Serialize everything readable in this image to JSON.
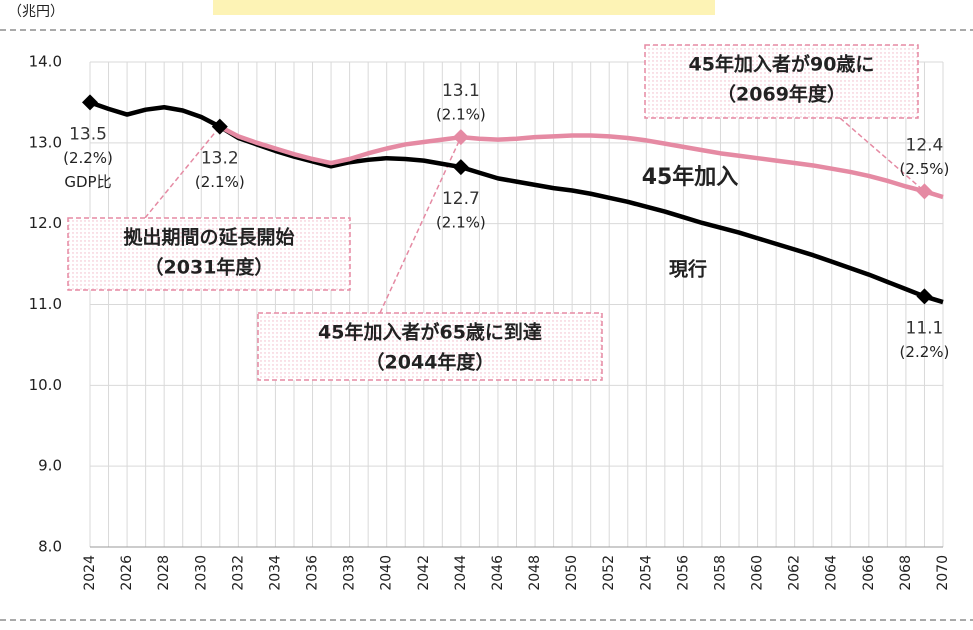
{
  "chart_data": {
    "type": "line",
    "unit_label": "（兆円）",
    "x": [
      2024,
      2025,
      2026,
      2027,
      2028,
      2029,
      2030,
      2031,
      2032,
      2033,
      2034,
      2035,
      2036,
      2037,
      2038,
      2039,
      2040,
      2041,
      2042,
      2043,
      2044,
      2045,
      2046,
      2047,
      2048,
      2049,
      2050,
      2051,
      2052,
      2053,
      2054,
      2055,
      2056,
      2057,
      2058,
      2059,
      2060,
      2061,
      2062,
      2063,
      2064,
      2065,
      2066,
      2067,
      2068,
      2069,
      2070
    ],
    "xlim": [
      2024,
      2070
    ],
    "xticks": [
      2024,
      2026,
      2028,
      2030,
      2032,
      2034,
      2036,
      2038,
      2040,
      2042,
      2044,
      2046,
      2048,
      2050,
      2052,
      2054,
      2056,
      2058,
      2060,
      2062,
      2064,
      2066,
      2068,
      2070
    ],
    "ylim": [
      8,
      14
    ],
    "yticks": [
      {
        "value": 8,
        "label": "8.0"
      },
      {
        "value": 9,
        "label": "9.0"
      },
      {
        "value": 10,
        "label": "10.0"
      },
      {
        "value": 11,
        "label": "11.0"
      },
      {
        "value": 12,
        "label": "12.0"
      },
      {
        "value": 13,
        "label": "13.0"
      },
      {
        "value": 14,
        "label": "14.0"
      }
    ],
    "grid": true,
    "series": [
      {
        "name": "現行",
        "color": "#000000",
        "values": [
          13.5,
          13.42,
          13.35,
          13.41,
          13.44,
          13.4,
          13.32,
          13.2,
          13.06,
          12.98,
          12.9,
          12.83,
          12.77,
          12.71,
          12.76,
          12.79,
          12.81,
          12.8,
          12.78,
          12.74,
          12.7,
          12.63,
          12.56,
          12.52,
          12.48,
          12.44,
          12.41,
          12.37,
          12.32,
          12.27,
          12.21,
          12.15,
          12.08,
          12.01,
          11.95,
          11.89,
          11.82,
          11.75,
          11.68,
          11.61,
          11.53,
          11.45,
          11.37,
          11.28,
          11.19,
          11.1,
          11.03
        ],
        "value_labels": [
          "13.5",
          null,
          null,
          null,
          null,
          null,
          null,
          "13.2",
          null,
          null,
          null,
          null,
          null,
          null,
          null,
          null,
          null,
          null,
          null,
          null,
          "12.7",
          null,
          null,
          null,
          null,
          null,
          null,
          null,
          null,
          null,
          null,
          null,
          null,
          null,
          null,
          null,
          null,
          null,
          null,
          null,
          null,
          null,
          null,
          null,
          null,
          "11.1",
          null
        ],
        "gdp_labels": [
          "(2.2%)",
          null,
          null,
          null,
          null,
          null,
          null,
          "(2.1%)",
          null,
          null,
          null,
          null,
          null,
          null,
          null,
          null,
          null,
          null,
          null,
          null,
          "(2.1%)",
          null,
          null,
          null,
          null,
          null,
          null,
          null,
          null,
          null,
          null,
          null,
          null,
          null,
          null,
          null,
          null,
          null,
          null,
          null,
          null,
          null,
          null,
          null,
          null,
          "(2.2%)",
          null
        ]
      },
      {
        "name": "45年加入",
        "color": "#e58aa3",
        "values": [
          null,
          null,
          null,
          null,
          null,
          null,
          null,
          13.2,
          13.08,
          13.0,
          12.93,
          12.86,
          12.8,
          12.75,
          12.8,
          12.87,
          12.93,
          12.98,
          13.01,
          13.04,
          13.07,
          13.05,
          13.04,
          13.05,
          13.07,
          13.08,
          13.09,
          13.09,
          13.08,
          13.06,
          13.03,
          12.99,
          12.95,
          12.91,
          12.87,
          12.84,
          12.81,
          12.78,
          12.75,
          12.72,
          12.68,
          12.64,
          12.59,
          12.53,
          12.46,
          12.4,
          12.33
        ],
        "value_labels": [
          null,
          null,
          null,
          null,
          null,
          null,
          null,
          null,
          null,
          null,
          null,
          null,
          null,
          null,
          null,
          null,
          null,
          null,
          null,
          null,
          "13.1",
          null,
          null,
          null,
          null,
          null,
          null,
          null,
          null,
          null,
          null,
          null,
          null,
          null,
          null,
          null,
          null,
          null,
          null,
          null,
          null,
          null,
          null,
          null,
          null,
          "12.4",
          null
        ],
        "gdp_labels": [
          null,
          null,
          null,
          null,
          null,
          null,
          null,
          null,
          null,
          null,
          null,
          null,
          null,
          null,
          null,
          null,
          null,
          null,
          null,
          null,
          "(2.1%)",
          null,
          null,
          null,
          null,
          null,
          null,
          null,
          null,
          null,
          null,
          null,
          null,
          null,
          null,
          null,
          null,
          null,
          null,
          null,
          null,
          null,
          null,
          null,
          null,
          "(2.5%)",
          null
        ]
      }
    ],
    "gdp_ratio_note": "GDP比",
    "annotations": [
      {
        "lines": [
          "拠出期間の延長開始",
          "（2031年度）"
        ]
      },
      {
        "lines": [
          "45年加入者が65歳に到達",
          "（2044年度）"
        ]
      },
      {
        "lines": [
          "45年加入者が90歳に",
          "（2069年度）"
        ]
      }
    ]
  }
}
